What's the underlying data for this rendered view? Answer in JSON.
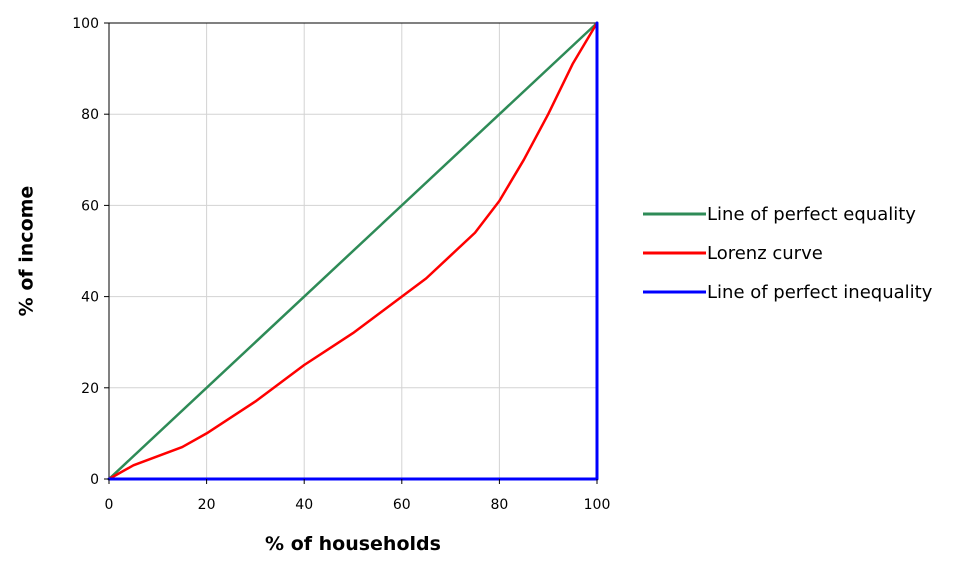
{
  "chart_data": {
    "type": "line",
    "xlabel": "% of households",
    "ylabel": "% of income",
    "xlim": [
      0,
      100
    ],
    "ylim": [
      0,
      100
    ],
    "x_ticks": [
      0,
      20,
      40,
      60,
      80,
      100
    ],
    "y_ticks": [
      0,
      20,
      40,
      60,
      80,
      100
    ],
    "grid": true,
    "legend_position": "right",
    "series": [
      {
        "name": "Line of perfect equality",
        "color": "#2e8b57",
        "x": [
          0,
          100
        ],
        "y": [
          0,
          100
        ]
      },
      {
        "name": "Lorenz curve",
        "color": "#ff0000",
        "x": [
          0,
          5,
          10,
          15,
          20,
          25,
          30,
          35,
          40,
          45,
          50,
          55,
          60,
          65,
          70,
          75,
          80,
          85,
          90,
          95,
          100
        ],
        "y": [
          0,
          3,
          5,
          7,
          10,
          13.5,
          17,
          21,
          25,
          28.5,
          32,
          36,
          40,
          44,
          49,
          54,
          61,
          70,
          80,
          91,
          100
        ]
      },
      {
        "name": "Line of perfect inequality",
        "color": "#0000ff",
        "x": [
          0,
          100,
          100
        ],
        "y": [
          0,
          0,
          100
        ]
      }
    ]
  }
}
